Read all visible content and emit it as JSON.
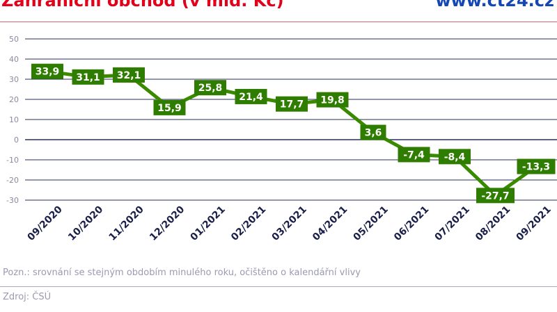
{
  "header": {
    "title": "Zahraniční obchod (v mld. Kč)",
    "brand": "www.ct24.cz"
  },
  "footer": {
    "note": "Pozn.: srovnání se stejným obdobím minulého roku, očištěno o kalendářní vlivy",
    "source": "Zdroj: ČSÚ"
  },
  "chart_data": {
    "type": "line",
    "title": "Zahraniční obchod (v mld. Kč)",
    "categories": [
      "09/2020",
      "10/2020",
      "11/2020",
      "12/2020",
      "01/2021",
      "02/2021",
      "03/2021",
      "04/2021",
      "05/2021",
      "06/2021",
      "07/2021",
      "08/2021",
      "09/2021"
    ],
    "values": [
      33.9,
      31.1,
      32.1,
      15.9,
      25.8,
      21.4,
      17.7,
      19.8,
      3.6,
      -7.4,
      -8.4,
      -27.7,
      -13.3
    ],
    "labels": [
      "33,9",
      "31,1",
      "32,1",
      "15,9",
      "25,8",
      "21,4",
      "17,7",
      "19,8",
      "3,6",
      "-7,4",
      "-8,4",
      "-27,7",
      "-13,3"
    ],
    "yticks": [
      50,
      40,
      30,
      20,
      10,
      0,
      -10,
      -20,
      -30
    ],
    "ylim": [
      -30,
      50
    ],
    "grid": true,
    "colors": {
      "line": "#3a8a00",
      "label_bg": "#2f7d00",
      "grid": "#2a2f5a",
      "title": "#e3001b",
      "brand": "#1446b4"
    }
  }
}
